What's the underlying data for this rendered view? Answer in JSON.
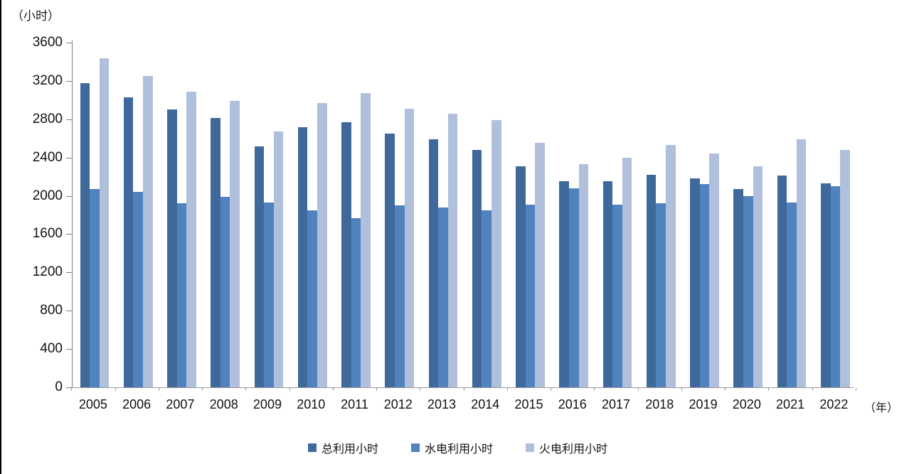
{
  "chart": {
    "y_axis_unit": "（小时）",
    "x_axis_unit": "（年）"
  },
  "chart_data": {
    "type": "bar",
    "title": "",
    "xlabel": "（年）",
    "ylabel": "（小时）",
    "ylim": [
      0,
      3600
    ],
    "ytick_step": 400,
    "grid": false,
    "legend_position": "bottom",
    "categories": [
      "2005",
      "2006",
      "2007",
      "2008",
      "2009",
      "2010",
      "2011",
      "2012",
      "2013",
      "2014",
      "2015",
      "2016",
      "2017",
      "2018",
      "2019",
      "2020",
      "2021",
      "2022"
    ],
    "series": [
      {
        "name": "总利用小时",
        "color": "#40699B",
        "values": [
          3180,
          3030,
          2900,
          2810,
          2520,
          2720,
          2770,
          2650,
          2590,
          2480,
          2310,
          2150,
          2150,
          2220,
          2180,
          2070,
          2210,
          2130
        ]
      },
      {
        "name": "水电利用小时",
        "color": "#5082BE",
        "values": [
          2070,
          2040,
          1920,
          1990,
          1930,
          1850,
          1770,
          1900,
          1880,
          1850,
          1910,
          2080,
          1910,
          1920,
          2120,
          2000,
          1930,
          2100
        ]
      },
      {
        "name": "火电利用小时",
        "color": "#AFBFDC",
        "values": [
          3440,
          3250,
          3090,
          2990,
          2670,
          2970,
          3070,
          2910,
          2860,
          2790,
          2550,
          2330,
          2400,
          2530,
          2440,
          2310,
          2590,
          2480
        ]
      }
    ]
  }
}
